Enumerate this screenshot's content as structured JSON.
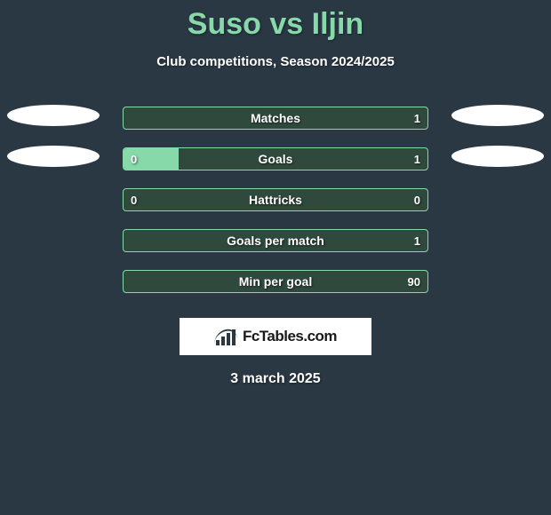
{
  "colors": {
    "background": "#2a3844",
    "accent": "#87d9a9",
    "bar_bg": "#2f4a3d",
    "ellipse": "#ffffff",
    "text": "#ffffff"
  },
  "title": "Suso vs Iljin",
  "subtitle": "Club competitions, Season 2024/2025",
  "stats": [
    {
      "label": "Matches",
      "left_value": "",
      "right_value": "1",
      "left_fill_pct": 0,
      "right_fill_pct": 0,
      "show_left_ellipse": true,
      "show_right_ellipse": true
    },
    {
      "label": "Goals",
      "left_value": "0",
      "right_value": "1",
      "left_fill_pct": 18,
      "right_fill_pct": 0,
      "show_left_ellipse": true,
      "show_right_ellipse": true
    },
    {
      "label": "Hattricks",
      "left_value": "0",
      "right_value": "0",
      "left_fill_pct": 0,
      "right_fill_pct": 0,
      "show_left_ellipse": false,
      "show_right_ellipse": false
    },
    {
      "label": "Goals per match",
      "left_value": "",
      "right_value": "1",
      "left_fill_pct": 0,
      "right_fill_pct": 0,
      "show_left_ellipse": false,
      "show_right_ellipse": false
    },
    {
      "label": "Min per goal",
      "left_value": "",
      "right_value": "90",
      "left_fill_pct": 0,
      "right_fill_pct": 0,
      "show_left_ellipse": false,
      "show_right_ellipse": false
    }
  ],
  "logo_text": "FcTables.com",
  "date": "3 march 2025"
}
